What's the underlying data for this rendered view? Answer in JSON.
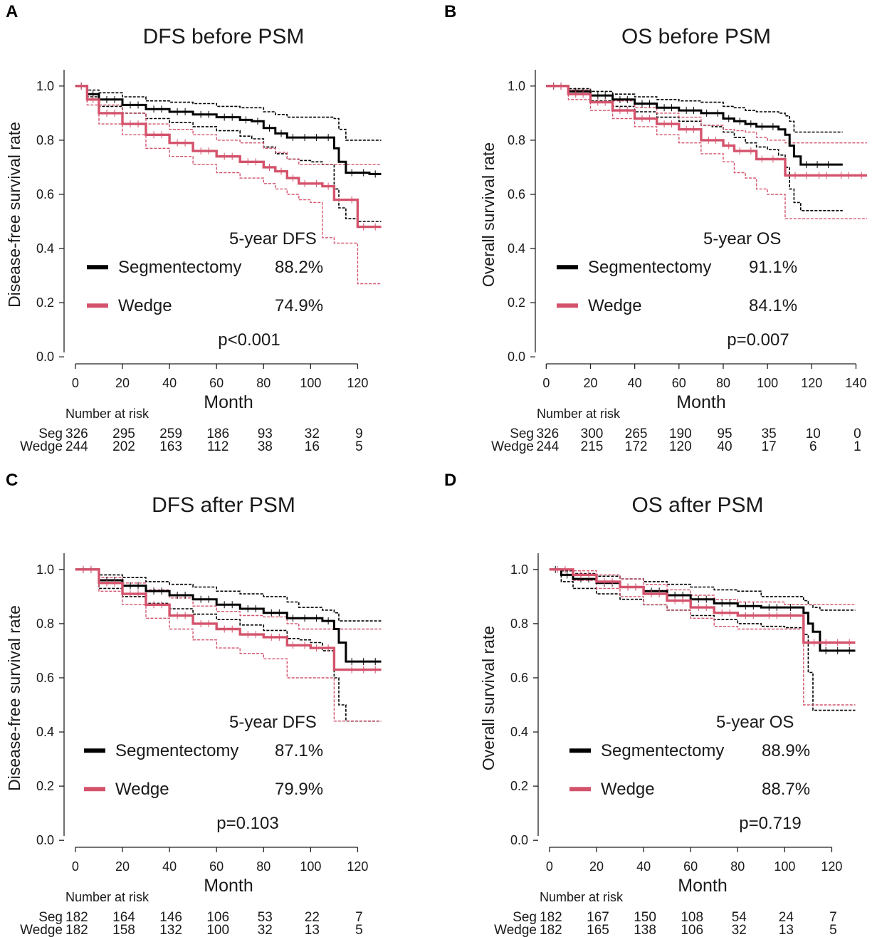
{
  "chart_data": [
    {
      "type": "line",
      "panel": "A",
      "title": "DFS before PSM",
      "xlabel": "Month",
      "ylabel": "Disease-free survival rate",
      "xlim": [
        -3,
        135
      ],
      "ylim": [
        -0.01,
        1.06
      ],
      "xticks": [
        "0",
        "20",
        "40",
        "60",
        "80",
        "100",
        "120"
      ],
      "yticks": [
        "0.0",
        "0.2",
        "0.4",
        "0.6",
        "0.8",
        "1.0"
      ],
      "legend_title": "5-year DFS",
      "pvalue": "p<0.001",
      "series": [
        {
          "name": "Segmentectomy",
          "rate": "88.2%",
          "color": "#000000",
          "x": [
            0,
            5,
            10,
            20,
            30,
            40,
            50,
            60,
            70,
            75,
            80,
            85,
            90,
            95,
            100,
            105,
            110,
            112,
            115,
            120,
            125,
            130
          ],
          "y": [
            1.0,
            0.97,
            0.95,
            0.93,
            0.915,
            0.905,
            0.895,
            0.885,
            0.875,
            0.87,
            0.845,
            0.825,
            0.81,
            0.81,
            0.81,
            0.81,
            0.77,
            0.72,
            0.68,
            0.68,
            0.675,
            0.675
          ],
          "lower": [
            1.0,
            0.96,
            0.925,
            0.9,
            0.88,
            0.865,
            0.85,
            0.835,
            0.815,
            0.805,
            0.775,
            0.75,
            0.73,
            0.725,
            0.72,
            0.71,
            0.62,
            0.55,
            0.51,
            0.5,
            0.5,
            0.5
          ],
          "upper": [
            1.0,
            0.985,
            0.975,
            0.96,
            0.945,
            0.94,
            0.935,
            0.925,
            0.92,
            0.92,
            0.905,
            0.895,
            0.885,
            0.885,
            0.885,
            0.885,
            0.88,
            0.84,
            0.8,
            0.8,
            0.8,
            0.8
          ]
        },
        {
          "name": "Wedge",
          "rate": "74.9%",
          "color": "#d4536c",
          "x": [
            0,
            5,
            10,
            20,
            30,
            40,
            50,
            60,
            70,
            80,
            85,
            90,
            95,
            100,
            105,
            110,
            112,
            115,
            120,
            125,
            130
          ],
          "y": [
            1.0,
            0.95,
            0.9,
            0.86,
            0.82,
            0.79,
            0.76,
            0.74,
            0.72,
            0.7,
            0.685,
            0.66,
            0.64,
            0.64,
            0.63,
            0.58,
            0.58,
            0.58,
            0.48,
            0.48,
            0.48
          ],
          "lower": [
            1.0,
            0.93,
            0.86,
            0.82,
            0.77,
            0.74,
            0.71,
            0.68,
            0.66,
            0.64,
            0.62,
            0.6,
            0.58,
            0.57,
            0.44,
            0.42,
            0.42,
            0.42,
            0.27,
            0.27,
            0.27
          ],
          "upper": [
            1.0,
            0.97,
            0.93,
            0.9,
            0.86,
            0.84,
            0.82,
            0.8,
            0.79,
            0.77,
            0.755,
            0.73,
            0.71,
            0.71,
            0.71,
            0.71,
            0.71,
            0.71,
            0.71,
            0.71,
            0.71
          ]
        }
      ],
      "risk_table": {
        "title": "Number at risk",
        "months": [
          0,
          20,
          40,
          60,
          80,
          100,
          120
        ],
        "rows": [
          {
            "label": "Seg",
            "values": [
              "326",
              "295",
              "259",
              "186",
              "93",
              "32",
              "9"
            ]
          },
          {
            "label": "Wedge",
            "values": [
              "244",
              "202",
              "163",
              "112",
              "38",
              "16",
              "5"
            ]
          }
        ]
      }
    },
    {
      "type": "line",
      "panel": "B",
      "title": "OS before PSM",
      "xlabel": "Month",
      "ylabel": "Overall survival rate",
      "xlim": [
        -3,
        145
      ],
      "ylim": [
        -0.01,
        1.06
      ],
      "xticks": [
        "0",
        "20",
        "40",
        "60",
        "80",
        "100",
        "120",
        "140"
      ],
      "yticks": [
        "0.0",
        "0.2",
        "0.4",
        "0.6",
        "0.8",
        "1.0"
      ],
      "legend_title": "5-year OS",
      "pvalue": "p=0.007",
      "series": [
        {
          "name": "Segmentectomy",
          "rate": "91.1%",
          "color": "#000000",
          "x": [
            0,
            10,
            20,
            30,
            40,
            50,
            60,
            70,
            75,
            80,
            85,
            90,
            95,
            100,
            105,
            108,
            110,
            112,
            115,
            120,
            125,
            130,
            134
          ],
          "y": [
            1.0,
            0.98,
            0.965,
            0.95,
            0.935,
            0.92,
            0.91,
            0.9,
            0.9,
            0.88,
            0.87,
            0.86,
            0.85,
            0.85,
            0.84,
            0.82,
            0.78,
            0.74,
            0.71,
            0.71,
            0.71,
            0.71,
            0.71
          ],
          "lower": [
            1.0,
            0.97,
            0.945,
            0.925,
            0.905,
            0.885,
            0.87,
            0.855,
            0.85,
            0.83,
            0.81,
            0.79,
            0.775,
            0.765,
            0.745,
            0.7,
            0.62,
            0.57,
            0.54,
            0.54,
            0.54,
            0.54,
            0.54
          ],
          "upper": [
            1.0,
            0.99,
            0.98,
            0.97,
            0.96,
            0.95,
            0.945,
            0.94,
            0.94,
            0.925,
            0.92,
            0.91,
            0.905,
            0.905,
            0.9,
            0.89,
            0.87,
            0.83,
            0.83,
            0.83,
            0.83,
            0.83,
            0.83
          ]
        },
        {
          "name": "Wedge",
          "rate": "84.1%",
          "color": "#d4536c",
          "x": [
            0,
            10,
            20,
            30,
            40,
            50,
            60,
            70,
            80,
            85,
            90,
            95,
            100,
            105,
            108,
            110,
            115,
            120,
            130,
            140,
            145
          ],
          "y": [
            1.0,
            0.97,
            0.94,
            0.91,
            0.88,
            0.86,
            0.84,
            0.8,
            0.78,
            0.76,
            0.76,
            0.73,
            0.73,
            0.73,
            0.67,
            0.67,
            0.67,
            0.67,
            0.67,
            0.67,
            0.67
          ],
          "lower": [
            1.0,
            0.95,
            0.91,
            0.88,
            0.85,
            0.82,
            0.79,
            0.75,
            0.72,
            0.68,
            0.66,
            0.62,
            0.6,
            0.6,
            0.51,
            0.51,
            0.51,
            0.51,
            0.51,
            0.51,
            0.51
          ],
          "upper": [
            1.0,
            0.985,
            0.965,
            0.945,
            0.92,
            0.9,
            0.885,
            0.855,
            0.84,
            0.835,
            0.83,
            0.81,
            0.8,
            0.8,
            0.79,
            0.79,
            0.79,
            0.79,
            0.79,
            0.79,
            0.79
          ]
        }
      ],
      "risk_table": {
        "title": "Number at risk",
        "months": [
          0,
          20,
          40,
          60,
          80,
          100,
          120,
          140
        ],
        "rows": [
          {
            "label": "Seg",
            "values": [
              "326",
              "300",
              "265",
              "190",
              "95",
              "35",
              "10",
              "0"
            ]
          },
          {
            "label": "Wedge",
            "values": [
              "244",
              "215",
              "172",
              "120",
              "40",
              "17",
              "6",
              "1"
            ]
          }
        ]
      }
    },
    {
      "type": "line",
      "panel": "C",
      "title": "DFS after PSM",
      "xlabel": "Month",
      "ylabel": "Disease-free survival rate",
      "xlim": [
        -3,
        135
      ],
      "ylim": [
        -0.01,
        1.06
      ],
      "xticks": [
        "0",
        "20",
        "40",
        "60",
        "80",
        "100",
        "120"
      ],
      "yticks": [
        "0.0",
        "0.2",
        "0.4",
        "0.6",
        "0.8",
        "1.0"
      ],
      "legend_title": "5-year DFS",
      "pvalue": "p=0.103",
      "series": [
        {
          "name": "Segmentectomy",
          "rate": "87.1%",
          "color": "#000000",
          "x": [
            0,
            10,
            20,
            30,
            40,
            50,
            60,
            70,
            80,
            90,
            95,
            100,
            105,
            110,
            112,
            115,
            120,
            125,
            130
          ],
          "y": [
            1.0,
            0.96,
            0.94,
            0.92,
            0.905,
            0.89,
            0.87,
            0.855,
            0.84,
            0.82,
            0.82,
            0.82,
            0.81,
            0.78,
            0.73,
            0.66,
            0.66,
            0.66,
            0.66
          ],
          "lower": [
            1.0,
            0.93,
            0.9,
            0.875,
            0.855,
            0.835,
            0.815,
            0.795,
            0.775,
            0.745,
            0.74,
            0.73,
            0.7,
            0.6,
            0.5,
            0.44,
            0.44,
            0.44,
            0.44
          ],
          "upper": [
            1.0,
            0.98,
            0.97,
            0.955,
            0.945,
            0.935,
            0.92,
            0.91,
            0.9,
            0.88,
            0.86,
            0.86,
            0.85,
            0.84,
            0.81,
            0.81,
            0.81,
            0.81,
            0.81
          ]
        },
        {
          "name": "Wedge",
          "rate": "79.9%",
          "color": "#d4536c",
          "x": [
            0,
            10,
            20,
            30,
            40,
            50,
            60,
            70,
            80,
            90,
            95,
            100,
            105,
            110,
            112,
            115,
            120,
            125,
            130
          ],
          "y": [
            1.0,
            0.95,
            0.91,
            0.87,
            0.83,
            0.8,
            0.78,
            0.76,
            0.75,
            0.72,
            0.72,
            0.71,
            0.71,
            0.63,
            0.63,
            0.63,
            0.63,
            0.63,
            0.63
          ],
          "lower": [
            1.0,
            0.92,
            0.87,
            0.82,
            0.78,
            0.74,
            0.71,
            0.69,
            0.67,
            0.6,
            0.6,
            0.6,
            0.6,
            0.44,
            0.44,
            0.44,
            0.44,
            0.44,
            0.44
          ],
          "upper": [
            1.0,
            0.97,
            0.95,
            0.925,
            0.895,
            0.865,
            0.845,
            0.83,
            0.825,
            0.8,
            0.78,
            0.78,
            0.78,
            0.78,
            0.78,
            0.78,
            0.78,
            0.78,
            0.78
          ]
        }
      ],
      "risk_table": {
        "title": "Number at risk",
        "months": [
          0,
          20,
          40,
          60,
          80,
          100,
          120
        ],
        "rows": [
          {
            "label": "Seg",
            "values": [
              "182",
              "164",
              "146",
              "106",
              "53",
              "22",
              "7"
            ]
          },
          {
            "label": "Wedge",
            "values": [
              "182",
              "158",
              "132",
              "100",
              "32",
              "13",
              "5"
            ]
          }
        ]
      }
    },
    {
      "type": "line",
      "panel": "D",
      "title": "OS after PSM",
      "xlabel": "Month",
      "ylabel": "Overall survival rate",
      "xlim": [
        -3,
        135
      ],
      "ylim": [
        -0.01,
        1.06
      ],
      "xticks": [
        "0",
        "20",
        "40",
        "60",
        "80",
        "100",
        "120"
      ],
      "yticks": [
        "0.0",
        "0.2",
        "0.4",
        "0.6",
        "0.8",
        "1.0"
      ],
      "legend_title": "5-year OS",
      "pvalue": "p=0.719",
      "series": [
        {
          "name": "Segmentectomy",
          "rate": "88.9%",
          "color": "#000000",
          "x": [
            0,
            5,
            10,
            20,
            30,
            40,
            50,
            60,
            70,
            80,
            90,
            100,
            105,
            108,
            110,
            112,
            115,
            120,
            125,
            130
          ],
          "y": [
            1.0,
            0.98,
            0.965,
            0.95,
            0.935,
            0.92,
            0.905,
            0.89,
            0.875,
            0.865,
            0.86,
            0.86,
            0.86,
            0.84,
            0.8,
            0.77,
            0.7,
            0.7,
            0.7,
            0.7
          ],
          "lower": [
            1.0,
            0.955,
            0.93,
            0.91,
            0.89,
            0.87,
            0.85,
            0.83,
            0.815,
            0.8,
            0.79,
            0.785,
            0.785,
            0.76,
            0.62,
            0.48,
            0.48,
            0.48,
            0.48,
            0.48
          ],
          "upper": [
            1.0,
            0.995,
            0.985,
            0.975,
            0.965,
            0.955,
            0.945,
            0.935,
            0.925,
            0.92,
            0.9,
            0.9,
            0.9,
            0.885,
            0.87,
            0.86,
            0.85,
            0.85,
            0.85,
            0.85
          ]
        },
        {
          "name": "Wedge",
          "rate": "88.7%",
          "color": "#d4536c",
          "x": [
            0,
            10,
            20,
            30,
            40,
            50,
            60,
            70,
            80,
            90,
            100,
            105,
            108,
            110,
            115,
            120,
            125,
            130
          ],
          "y": [
            1.0,
            0.98,
            0.955,
            0.935,
            0.91,
            0.885,
            0.86,
            0.84,
            0.83,
            0.83,
            0.83,
            0.83,
            0.73,
            0.73,
            0.73,
            0.73,
            0.73,
            0.73
          ],
          "lower": [
            1.0,
            0.96,
            0.93,
            0.9,
            0.87,
            0.85,
            0.82,
            0.79,
            0.78,
            0.78,
            0.78,
            0.78,
            0.5,
            0.5,
            0.5,
            0.5,
            0.5,
            0.5
          ],
          "upper": [
            1.0,
            0.995,
            0.98,
            0.965,
            0.945,
            0.925,
            0.905,
            0.89,
            0.88,
            0.88,
            0.87,
            0.87,
            0.87,
            0.87,
            0.87,
            0.87,
            0.87,
            0.87
          ]
        }
      ],
      "risk_table": {
        "title": "Number at risk",
        "months": [
          0,
          20,
          40,
          60,
          80,
          100,
          120
        ],
        "rows": [
          {
            "label": "Seg",
            "values": [
              "182",
              "167",
              "150",
              "108",
              "54",
              "24",
              "7"
            ]
          },
          {
            "label": "Wedge",
            "values": [
              "182",
              "165",
              "138",
              "106",
              "32",
              "13",
              "5"
            ]
          }
        ]
      }
    }
  ]
}
